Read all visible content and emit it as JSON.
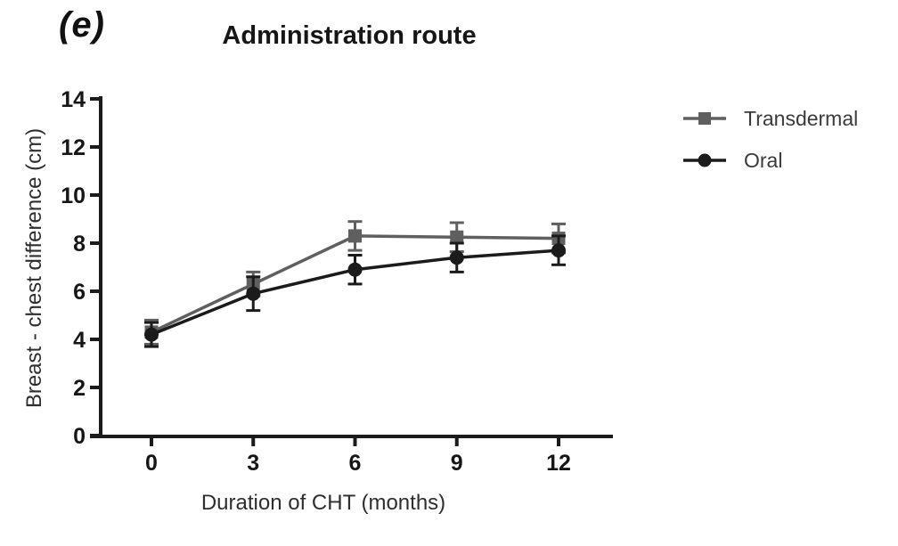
{
  "figure": {
    "panel_label": "(e)",
    "background": "#ffffff"
  },
  "chart_data": {
    "type": "line",
    "title": "Administration route",
    "xlabel": "Duration of CHT (months)",
    "ylabel": "Breast - chest difference (cm)",
    "x": [
      0,
      3,
      6,
      9,
      12
    ],
    "xticks": [
      "0",
      "3",
      "6",
      "9",
      "12"
    ],
    "yticks": [
      "0",
      "2",
      "4",
      "6",
      "8",
      "10",
      "12",
      "14"
    ],
    "xlim": [
      0,
      12
    ],
    "ylim": [
      0,
      14
    ],
    "grid": false,
    "legend_position": "right",
    "axis_color": "#1b1b1b",
    "series": [
      {
        "name": "Transdermal",
        "marker": "square",
        "color": "#5f5f5f",
        "values": [
          4.3,
          6.3,
          8.3,
          8.25,
          8.2
        ],
        "errors": [
          0.5,
          0.5,
          0.6,
          0.6,
          0.6
        ]
      },
      {
        "name": "Oral",
        "marker": "circle",
        "color": "#1b1b1b",
        "values": [
          4.2,
          5.9,
          6.9,
          7.4,
          7.7
        ],
        "errors": [
          0.5,
          0.7,
          0.6,
          0.6,
          0.6
        ]
      }
    ]
  }
}
